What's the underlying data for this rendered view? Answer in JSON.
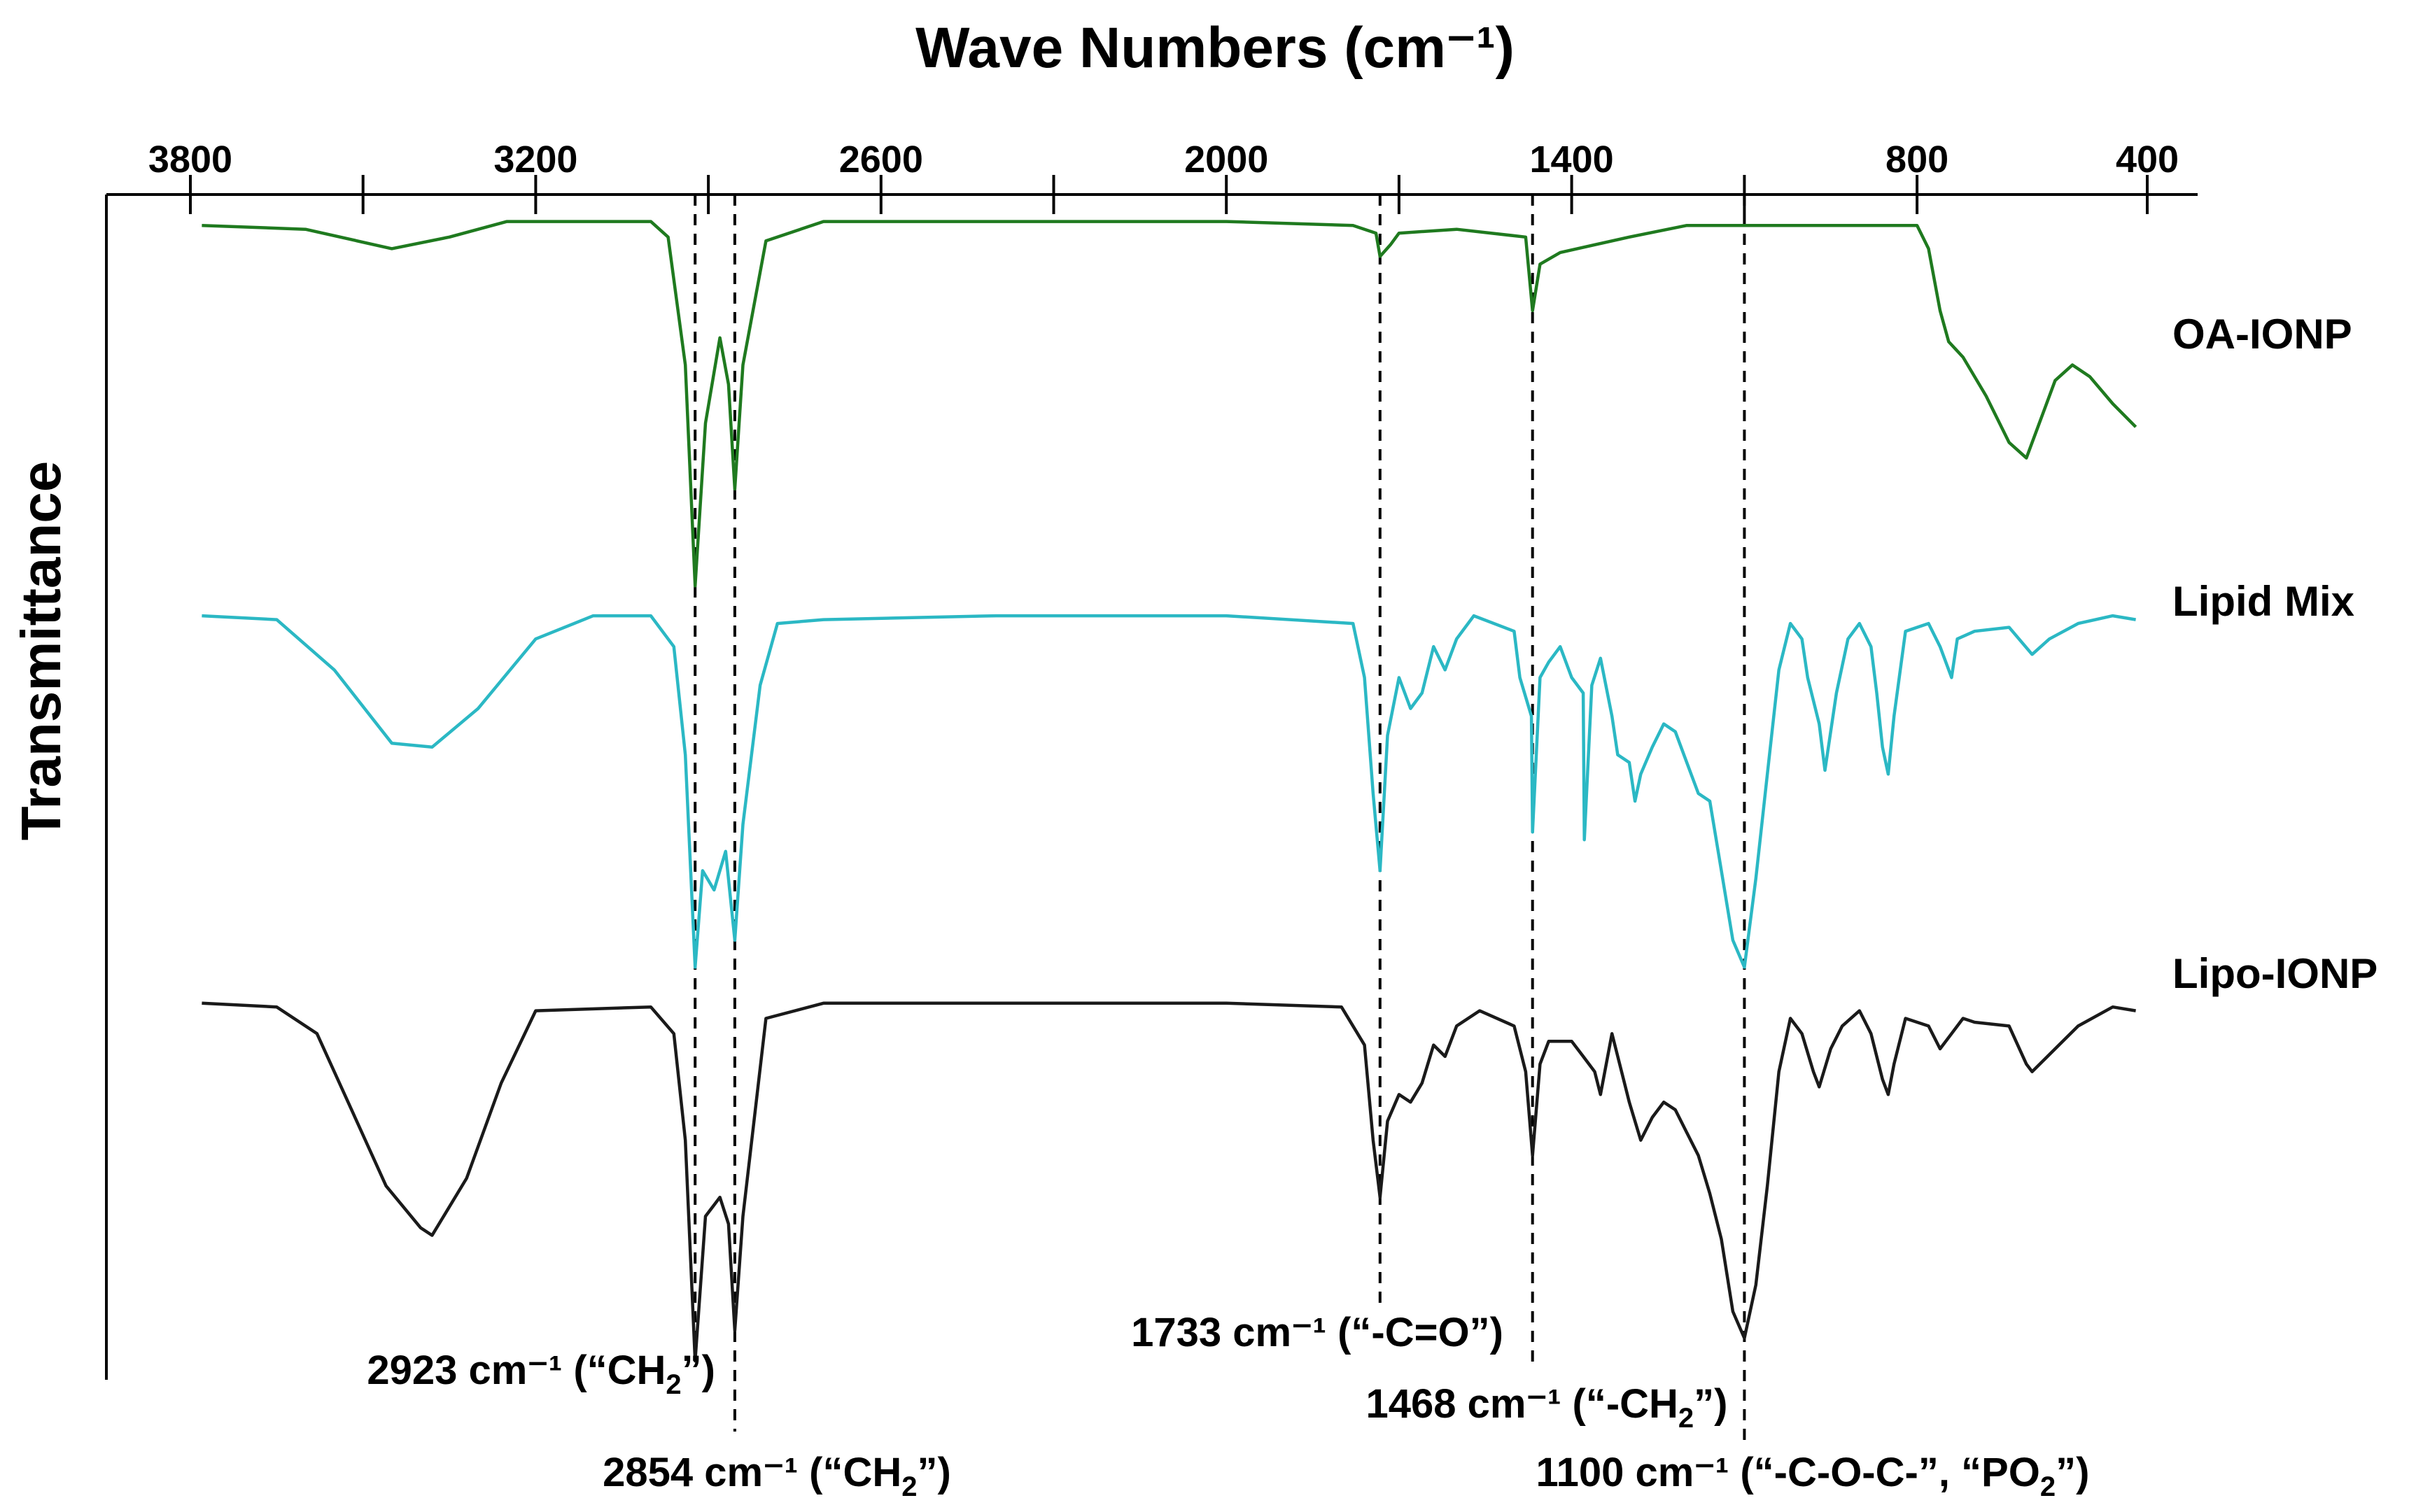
{
  "chart_data": {
    "type": "line",
    "title": "Wave Numbers (cm⁻¹)",
    "xlabel": "Wave Numbers (cm⁻¹)",
    "ylabel": "Transmittance",
    "xlim": [
      3900,
      330
    ],
    "x_reversed": true,
    "grid": false,
    "x_ticks": [
      3800,
      3500,
      3200,
      2900,
      2600,
      2300,
      2000,
      1700,
      1400,
      1100,
      800,
      400
    ],
    "x_tick_labels": [
      {
        "value": 3800,
        "text": "3800"
      },
      {
        "value": 3200,
        "text": "3200"
      },
      {
        "value": 2600,
        "text": "2600"
      },
      {
        "value": 2000,
        "text": "2000"
      },
      {
        "value": 1400,
        "text": "1400"
      },
      {
        "value": 800,
        "text": "800"
      },
      {
        "value": 400,
        "text": "400"
      }
    ],
    "series": [
      {
        "name": "OA-IONP",
        "color": "#1f7a1f",
        "y_range": [
          0,
          100
        ],
        "points": [
          [
            3780,
            96
          ],
          [
            3600,
            95
          ],
          [
            3450,
            90
          ],
          [
            3350,
            93
          ],
          [
            3250,
            97
          ],
          [
            3000,
            97
          ],
          [
            2970,
            93
          ],
          [
            2940,
            60
          ],
          [
            2923,
            3
          ],
          [
            2905,
            45
          ],
          [
            2880,
            67
          ],
          [
            2865,
            55
          ],
          [
            2854,
            28
          ],
          [
            2840,
            60
          ],
          [
            2800,
            92
          ],
          [
            2700,
            97
          ],
          [
            2400,
            97
          ],
          [
            2000,
            97
          ],
          [
            1780,
            96
          ],
          [
            1740,
            94
          ],
          [
            1733,
            88
          ],
          [
            1715,
            91
          ],
          [
            1700,
            94
          ],
          [
            1600,
            95
          ],
          [
            1480,
            93
          ],
          [
            1468,
            74
          ],
          [
            1455,
            86
          ],
          [
            1420,
            89
          ],
          [
            1300,
            93
          ],
          [
            1200,
            96
          ],
          [
            800,
            96
          ],
          [
            780,
            90
          ],
          [
            760,
            74
          ],
          [
            745,
            66
          ],
          [
            720,
            62
          ],
          [
            680,
            52
          ],
          [
            640,
            40
          ],
          [
            610,
            36
          ],
          [
            590,
            44
          ],
          [
            560,
            56
          ],
          [
            530,
            60
          ],
          [
            500,
            57
          ],
          [
            460,
            50
          ],
          [
            420,
            44
          ]
        ]
      },
      {
        "name": "Lipid Mix",
        "color": "#2bb8c4",
        "y_range": [
          0,
          100
        ],
        "points": [
          [
            3780,
            96
          ],
          [
            3650,
            95
          ],
          [
            3550,
            82
          ],
          [
            3450,
            63
          ],
          [
            3380,
            62
          ],
          [
            3300,
            72
          ],
          [
            3200,
            90
          ],
          [
            3100,
            96
          ],
          [
            3000,
            96
          ],
          [
            2960,
            88
          ],
          [
            2940,
            60
          ],
          [
            2923,
            5
          ],
          [
            2910,
            30
          ],
          [
            2890,
            25
          ],
          [
            2870,
            35
          ],
          [
            2854,
            12
          ],
          [
            2840,
            42
          ],
          [
            2810,
            78
          ],
          [
            2780,
            94
          ],
          [
            2700,
            95
          ],
          [
            2400,
            96
          ],
          [
            2000,
            96
          ],
          [
            1780,
            94
          ],
          [
            1760,
            80
          ],
          [
            1745,
            50
          ],
          [
            1733,
            30
          ],
          [
            1720,
            65
          ],
          [
            1700,
            80
          ],
          [
            1680,
            72
          ],
          [
            1660,
            76
          ],
          [
            1640,
            88
          ],
          [
            1620,
            82
          ],
          [
            1600,
            90
          ],
          [
            1570,
            96
          ],
          [
            1500,
            92
          ],
          [
            1490,
            80
          ],
          [
            1470,
            70
          ],
          [
            1468,
            40
          ],
          [
            1455,
            80
          ],
          [
            1440,
            84
          ],
          [
            1420,
            88
          ],
          [
            1400,
            80
          ],
          [
            1380,
            76
          ],
          [
            1378,
            38
          ],
          [
            1365,
            78
          ],
          [
            1350,
            85
          ],
          [
            1330,
            70
          ],
          [
            1320,
            60
          ],
          [
            1300,
            58
          ],
          [
            1290,
            48
          ],
          [
            1280,
            55
          ],
          [
            1260,
            62
          ],
          [
            1240,
            68
          ],
          [
            1220,
            66
          ],
          [
            1200,
            58
          ],
          [
            1180,
            50
          ],
          [
            1160,
            48
          ],
          [
            1140,
            30
          ],
          [
            1120,
            12
          ],
          [
            1100,
            5
          ],
          [
            1080,
            28
          ],
          [
            1060,
            55
          ],
          [
            1040,
            82
          ],
          [
            1020,
            94
          ],
          [
            1000,
            90
          ],
          [
            990,
            80
          ],
          [
            970,
            68
          ],
          [
            960,
            56
          ],
          [
            940,
            76
          ],
          [
            920,
            90
          ],
          [
            900,
            94
          ],
          [
            880,
            88
          ],
          [
            870,
            76
          ],
          [
            860,
            62
          ],
          [
            850,
            55
          ],
          [
            840,
            70
          ],
          [
            820,
            92
          ],
          [
            780,
            94
          ],
          [
            760,
            88
          ],
          [
            740,
            80
          ],
          [
            730,
            90
          ],
          [
            700,
            92
          ],
          [
            640,
            93
          ],
          [
            600,
            86
          ],
          [
            570,
            90
          ],
          [
            520,
            94
          ],
          [
            460,
            96
          ],
          [
            420,
            95
          ]
        ]
      },
      {
        "name": "Lipo-IONP",
        "color": "#1a1a1a",
        "y_range": [
          0,
          100
        ],
        "points": [
          [
            3780,
            96
          ],
          [
            3650,
            95
          ],
          [
            3580,
            88
          ],
          [
            3520,
            68
          ],
          [
            3460,
            48
          ],
          [
            3400,
            37
          ],
          [
            3380,
            35
          ],
          [
            3320,
            50
          ],
          [
            3260,
            75
          ],
          [
            3200,
            94
          ],
          [
            3000,
            95
          ],
          [
            2960,
            88
          ],
          [
            2940,
            60
          ],
          [
            2923,
            2
          ],
          [
            2905,
            40
          ],
          [
            2880,
            45
          ],
          [
            2865,
            38
          ],
          [
            2854,
            10
          ],
          [
            2840,
            40
          ],
          [
            2800,
            92
          ],
          [
            2700,
            96
          ],
          [
            2400,
            96
          ],
          [
            2000,
            96
          ],
          [
            1800,
            95
          ],
          [
            1760,
            85
          ],
          [
            1745,
            60
          ],
          [
            1733,
            45
          ],
          [
            1720,
            65
          ],
          [
            1700,
            72
          ],
          [
            1680,
            70
          ],
          [
            1660,
            75
          ],
          [
            1640,
            85
          ],
          [
            1620,
            82
          ],
          [
            1600,
            90
          ],
          [
            1560,
            94
          ],
          [
            1500,
            90
          ],
          [
            1480,
            78
          ],
          [
            1468,
            56
          ],
          [
            1455,
            80
          ],
          [
            1440,
            86
          ],
          [
            1400,
            86
          ],
          [
            1380,
            82
          ],
          [
            1360,
            78
          ],
          [
            1350,
            72
          ],
          [
            1340,
            80
          ],
          [
            1330,
            88
          ],
          [
            1310,
            76
          ],
          [
            1300,
            70
          ],
          [
            1280,
            60
          ],
          [
            1260,
            66
          ],
          [
            1240,
            70
          ],
          [
            1220,
            68
          ],
          [
            1200,
            62
          ],
          [
            1180,
            56
          ],
          [
            1160,
            46
          ],
          [
            1140,
            34
          ],
          [
            1120,
            15
          ],
          [
            1100,
            8
          ],
          [
            1080,
            22
          ],
          [
            1060,
            48
          ],
          [
            1040,
            78
          ],
          [
            1020,
            92
          ],
          [
            1000,
            88
          ],
          [
            980,
            78
          ],
          [
            970,
            74
          ],
          [
            950,
            84
          ],
          [
            930,
            90
          ],
          [
            900,
            94
          ],
          [
            880,
            88
          ],
          [
            860,
            76
          ],
          [
            850,
            72
          ],
          [
            840,
            80
          ],
          [
            820,
            92
          ],
          [
            780,
            90
          ],
          [
            760,
            84
          ],
          [
            740,
            88
          ],
          [
            720,
            92
          ],
          [
            700,
            91
          ],
          [
            640,
            90
          ],
          [
            610,
            80
          ],
          [
            600,
            78
          ],
          [
            560,
            84
          ],
          [
            520,
            90
          ],
          [
            460,
            95
          ],
          [
            420,
            94
          ]
        ]
      }
    ],
    "annotations": [
      {
        "wavenumber": 2923,
        "main": "2923 cm⁻¹ (“CH",
        "sub": "2",
        "tail": "”)"
      },
      {
        "wavenumber": 2854,
        "main": "2854 cm⁻¹ (“CH",
        "sub": "2",
        "tail": "”)"
      },
      {
        "wavenumber": 1733,
        "main": "1733 cm⁻¹ (“-C=O”)",
        "sub": "",
        "tail": ""
      },
      {
        "wavenumber": 1468,
        "main": "1468 cm⁻¹ (“-CH",
        "sub": "2",
        "tail": "”)"
      },
      {
        "wavenumber": 1100,
        "main": "1100 cm⁻¹ (“-C-O-C-”, “PO",
        "sub": "2",
        "tail": "”)"
      }
    ]
  }
}
